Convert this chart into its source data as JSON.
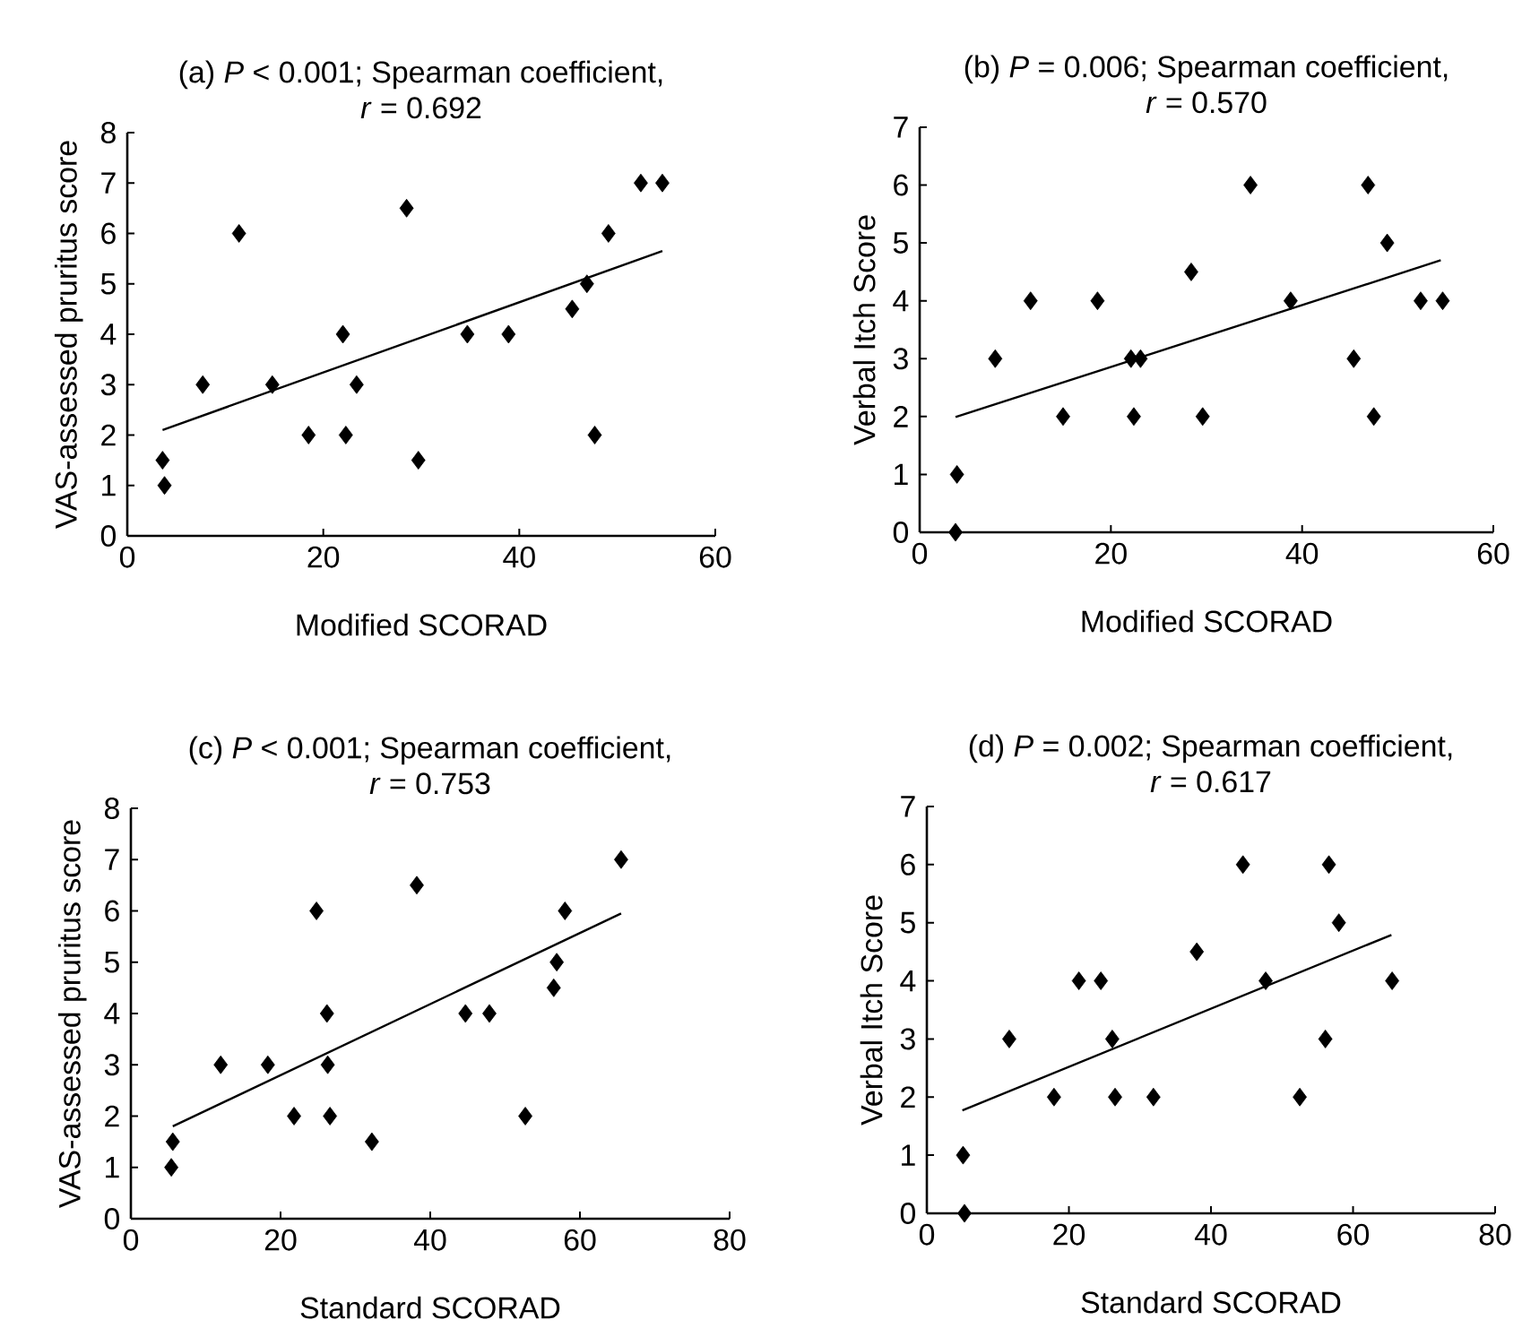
{
  "chart_data": [
    {
      "type": "scatter",
      "title": "(a)  *P* < 0.001; Spearman coefficient,",
      "subtitle": "*r* = 0.692",
      "xlabel": "Modified SCORAD",
      "ylabel": "VAS-assessed pruritus score",
      "xlim": [
        0,
        60
      ],
      "ylim": [
        0,
        8
      ],
      "xticks": [
        0,
        20,
        40,
        60
      ],
      "yticks": [
        0,
        1,
        2,
        3,
        4,
        5,
        6,
        7,
        8
      ],
      "series": [
        {
          "marker": "diamond",
          "color": "#000000",
          "x": [
            3.6,
            3.8,
            7.7,
            11.4,
            14.8,
            18.5,
            22,
            22.3,
            23.4,
            28.5,
            29.7,
            34.7,
            38.9,
            45.4,
            46.9,
            47.7,
            49.1,
            52.4,
            54.6
          ],
          "values": [
            1.5,
            1.0,
            3.0,
            6.0,
            3.0,
            2.0,
            4.0,
            2.0,
            3.0,
            6.5,
            1.5,
            4.0,
            4.0,
            4.5,
            5.0,
            2.0,
            6.0,
            7.0,
            7.0
          ]
        },
        {
          "type": "line",
          "marker": "none",
          "color": "#000000",
          "x": [
            3.6,
            54.6
          ],
          "values": [
            2.1,
            5.65
          ]
        }
      ]
    },
    {
      "type": "scatter",
      "title": "(b)  *P* = 0.006; Spearman coefficient,",
      "subtitle": "*r* = 0.570",
      "xlabel": "Modified SCORAD",
      "ylabel": "Verbal Itch Score",
      "xlim": [
        0,
        60
      ],
      "ylim": [
        0,
        7
      ],
      "xticks": [
        0,
        20,
        40,
        60
      ],
      "yticks": [
        0,
        1,
        2,
        3,
        4,
        5,
        6,
        7
      ],
      "series": [
        {
          "marker": "diamond",
          "color": "#000000",
          "x": [
            3.75,
            3.9,
            7.9,
            11.6,
            15,
            18.6,
            22.1,
            22.4,
            23.1,
            28.4,
            29.6,
            34.6,
            38.8,
            45.4,
            46.9,
            47.5,
            48.9,
            52.4,
            54.7
          ],
          "values": [
            0,
            1,
            3,
            4,
            2,
            4,
            3,
            2,
            3,
            4.5,
            2,
            6,
            4,
            3,
            6,
            2,
            5,
            4,
            4
          ]
        },
        {
          "type": "line",
          "marker": "none",
          "color": "#000000",
          "x": [
            3.75,
            54.5
          ],
          "values": [
            1.99,
            4.7
          ]
        }
      ]
    },
    {
      "type": "scatter",
      "title": "(c)  *P* < 0.001; Spearman coefficient,",
      "subtitle": "*r* = 0.753",
      "xlabel": "Standard SCORAD",
      "ylabel": "VAS-assessed pruritus score",
      "xlim": [
        0,
        80
      ],
      "ylim": [
        0,
        8
      ],
      "xticks": [
        0,
        20,
        40,
        60,
        80
      ],
      "yticks": [
        0,
        1,
        2,
        3,
        4,
        5,
        6,
        7,
        8
      ],
      "series": [
        {
          "marker": "diamond",
          "color": "#000000",
          "x": [
            5.4,
            5.6,
            12,
            18.3,
            21.8,
            24.8,
            26.2,
            26.3,
            26.6,
            32.2,
            38.2,
            44.7,
            47.9,
            52.7,
            56.5,
            56.9,
            58,
            65.5
          ],
          "values": [
            1.0,
            1.5,
            3,
            3,
            2,
            6,
            4,
            3,
            2,
            1.5,
            6.5,
            4,
            4,
            2,
            4.5,
            5,
            6,
            7
          ]
        },
        {
          "type": "line",
          "marker": "none",
          "color": "#000000",
          "x": [
            5.6,
            65.5
          ],
          "values": [
            1.8,
            5.95
          ]
        }
      ]
    },
    {
      "type": "scatter",
      "title": "(d)  *P* = 0.002; Spearman coefficient,",
      "subtitle": "*r* = 0.617",
      "xlabel": "Standard SCORAD",
      "ylabel": "Verbal Itch Score",
      "xlim": [
        0,
        80
      ],
      "ylim": [
        0,
        7
      ],
      "xticks": [
        0,
        20,
        40,
        60,
        80
      ],
      "yticks": [
        0,
        1,
        2,
        3,
        4,
        5,
        6,
        7
      ],
      "series": [
        {
          "marker": "diamond",
          "color": "#000000",
          "x": [
            5.3,
            5.1,
            11.6,
            17.9,
            21.4,
            24.5,
            26.1,
            26.5,
            31.9,
            38,
            44.5,
            47.7,
            52.5,
            56.1,
            56.6,
            58,
            65.5
          ],
          "values": [
            0,
            1,
            3,
            2,
            4,
            4,
            3,
            2,
            2,
            4.5,
            6,
            4,
            2,
            3,
            6,
            5,
            4
          ]
        },
        {
          "type": "line",
          "marker": "none",
          "color": "#000000",
          "x": [
            5,
            65.4
          ],
          "values": [
            1.77,
            4.79
          ]
        }
      ]
    }
  ]
}
